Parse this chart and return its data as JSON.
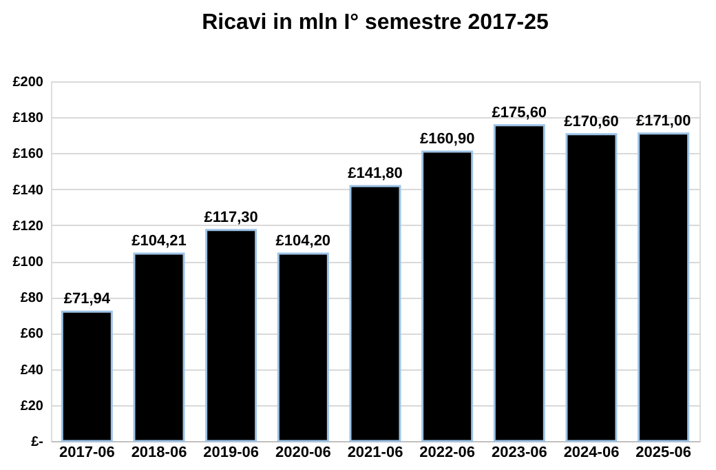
{
  "chart_data": {
    "type": "bar",
    "title": "Ricavi in mln I° semestre 2017-25",
    "categories": [
      "2017-06",
      "2018-06",
      "2019-06",
      "2020-06",
      "2021-06",
      "2022-06",
      "2023-06",
      "2024-06",
      "2025-06"
    ],
    "values": [
      71.94,
      104.21,
      117.3,
      104.2,
      141.8,
      160.9,
      175.6,
      170.6,
      171.0
    ],
    "value_labels": [
      "£71,94",
      "£104,21",
      "£117,30",
      "£104,20",
      "£141,80",
      "£160,90",
      "£175,60",
      "£170,60",
      "£171,00"
    ],
    "color": "#000000",
    "ylim": [
      0,
      200
    ],
    "yticks": [
      {
        "value": 0,
        "label": "£-"
      },
      {
        "value": 20,
        "label": "£20"
      },
      {
        "value": 40,
        "label": "£40"
      },
      {
        "value": 60,
        "label": "£60"
      },
      {
        "value": 80,
        "label": "£80"
      },
      {
        "value": 100,
        "label": "£100"
      },
      {
        "value": 120,
        "label": "£120"
      },
      {
        "value": 140,
        "label": "£140"
      },
      {
        "value": 160,
        "label": "£160"
      },
      {
        "value": 180,
        "label": "£180"
      },
      {
        "value": 200,
        "label": "£200"
      }
    ],
    "grid": "y"
  }
}
